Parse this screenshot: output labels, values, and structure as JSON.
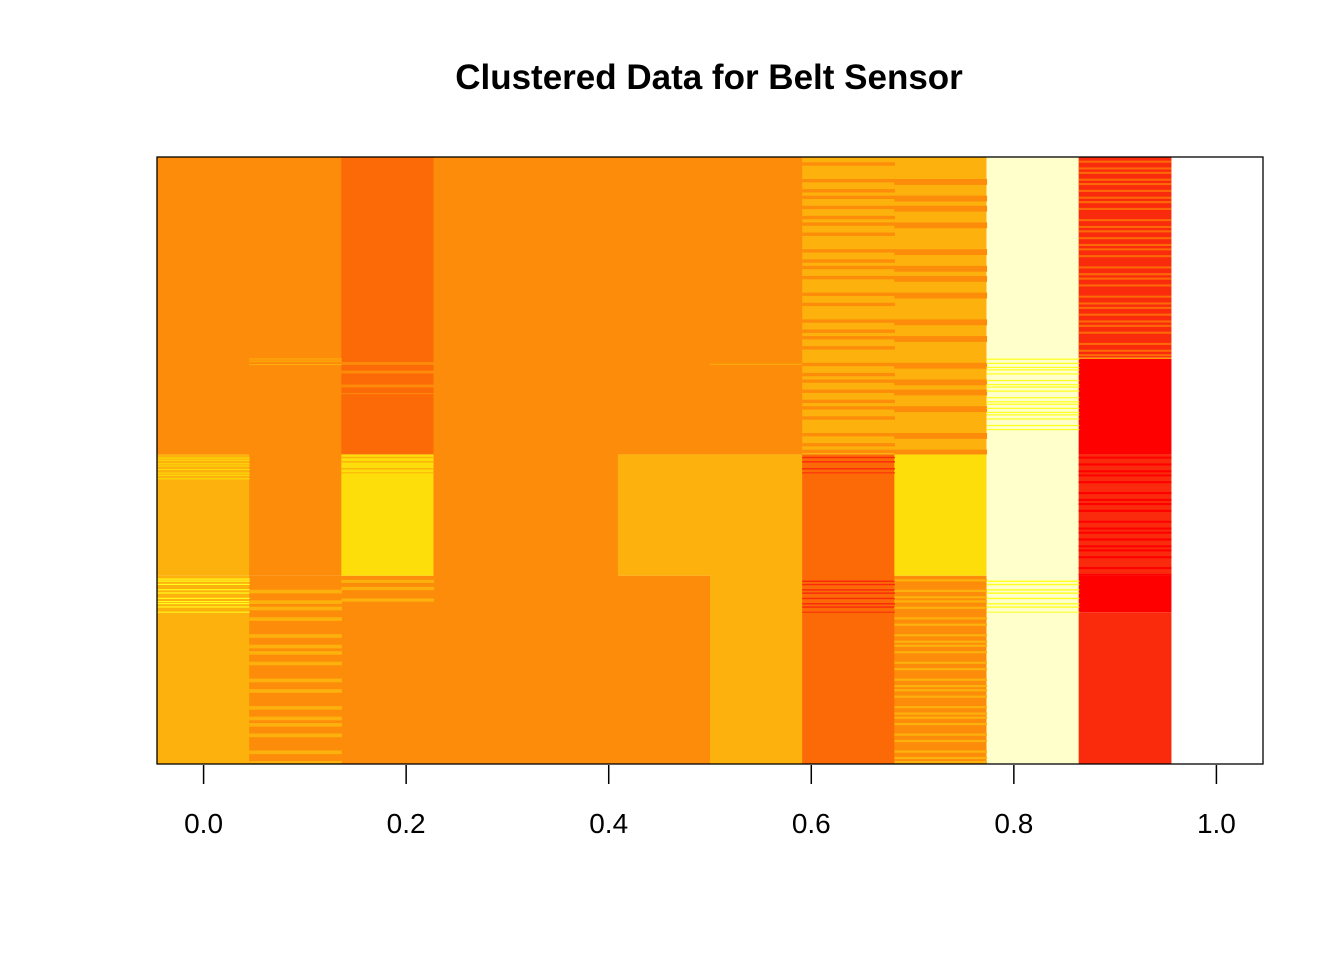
{
  "chart_data": {
    "type": "heatmap",
    "title": "Clustered Data for Belt Sensor",
    "xlabel": "",
    "ylabel": "",
    "x_ticks": [
      "0.0",
      "0.2",
      "0.4",
      "0.6",
      "0.8",
      "1.0"
    ],
    "x_tick_values": [
      0.0,
      0.2,
      0.4,
      0.6,
      0.8,
      1.0
    ],
    "xlim": [
      -0.046,
      1.046
    ],
    "colormap": "heat",
    "columns": 12,
    "palette": {
      "red": "#FF0000",
      "red_orange": "#FA2A0C",
      "dark_orange": "#FC6A08",
      "orange": "#FC8C0A",
      "amber": "#FCB10C",
      "yellow": "#FDDD0A",
      "bright_yellow": "#FFFF22",
      "pale_yellow": "#FFFFCC"
    },
    "blocks": [
      {
        "col": 0,
        "y0": 0.0,
        "y1": 0.49,
        "color": "orange"
      },
      {
        "col": 0,
        "y0": 0.49,
        "y1": 0.69,
        "color": "amber"
      },
      {
        "col": 0,
        "y0": 0.69,
        "y1": 0.75,
        "color": "amber"
      },
      {
        "col": 0,
        "y0": 0.75,
        "y1": 1.0,
        "color": "amber"
      },
      {
        "col": 1,
        "y0": 0.0,
        "y1": 0.69,
        "color": "orange"
      },
      {
        "col": 1,
        "y0": 0.69,
        "y1": 1.0,
        "color": "orange"
      },
      {
        "col": 2,
        "y0": 0.0,
        "y1": 0.49,
        "color": "dark_orange"
      },
      {
        "col": 2,
        "y0": 0.49,
        "y1": 0.69,
        "color": "yellow"
      },
      {
        "col": 2,
        "y0": 0.69,
        "y1": 1.0,
        "color": "orange"
      },
      {
        "col": 3,
        "y0": 0.0,
        "y1": 1.0,
        "color": "orange"
      },
      {
        "col": 4,
        "y0": 0.0,
        "y1": 1.0,
        "color": "orange"
      },
      {
        "col": 5,
        "y0": 0.0,
        "y1": 0.49,
        "color": "orange"
      },
      {
        "col": 5,
        "y0": 0.49,
        "y1": 0.69,
        "color": "amber"
      },
      {
        "col": 5,
        "y0": 0.69,
        "y1": 1.0,
        "color": "orange"
      },
      {
        "col": 6,
        "y0": 0.0,
        "y1": 0.49,
        "color": "orange"
      },
      {
        "col": 6,
        "y0": 0.49,
        "y1": 1.0,
        "color": "amber"
      },
      {
        "col": 7,
        "y0": 0.0,
        "y1": 0.49,
        "color": "amber"
      },
      {
        "col": 7,
        "y0": 0.49,
        "y1": 1.0,
        "color": "dark_orange"
      },
      {
        "col": 8,
        "y0": 0.0,
        "y1": 0.49,
        "color": "amber"
      },
      {
        "col": 8,
        "y0": 0.49,
        "y1": 0.69,
        "color": "yellow"
      },
      {
        "col": 8,
        "y0": 0.69,
        "y1": 1.0,
        "color": "orange"
      },
      {
        "col": 9,
        "y0": 0.0,
        "y1": 1.0,
        "color": "pale_yellow"
      },
      {
        "col": 10,
        "y0": 0.0,
        "y1": 0.33,
        "color": "red_orange"
      },
      {
        "col": 10,
        "y0": 0.33,
        "y1": 0.49,
        "color": "red"
      },
      {
        "col": 10,
        "y0": 0.49,
        "y1": 0.69,
        "color": "red_orange"
      },
      {
        "col": 10,
        "y0": 0.69,
        "y1": 0.75,
        "color": "red"
      },
      {
        "col": 10,
        "y0": 0.75,
        "y1": 1.0,
        "color": "red_orange"
      }
    ],
    "stripes": [
      {
        "col": 0,
        "y0": 0.49,
        "y1": 0.53,
        "color": "yellow",
        "n": 8
      },
      {
        "col": 0,
        "y0": 0.69,
        "y1": 0.75,
        "color": "bright_yellow",
        "n": 10
      },
      {
        "col": 1,
        "y0": 0.33,
        "y1": 0.345,
        "color": "amber",
        "n": 3
      },
      {
        "col": 1,
        "y0": 0.69,
        "y1": 1.0,
        "color": "amber",
        "n": 16
      },
      {
        "col": 2,
        "y0": 0.33,
        "y1": 0.39,
        "color": "orange",
        "n": 4
      },
      {
        "col": 2,
        "y0": 0.69,
        "y1": 0.74,
        "color": "amber",
        "n": 3
      },
      {
        "col": 2,
        "y0": 0.49,
        "y1": 0.52,
        "color": "amber",
        "n": 4
      },
      {
        "col": 6,
        "y0": 0.34,
        "y1": 0.345,
        "color": "amber",
        "n": 1
      },
      {
        "col": 7,
        "y0": 0.0,
        "y1": 0.49,
        "color": "orange",
        "n": 28
      },
      {
        "col": 7,
        "y0": 0.49,
        "y1": 0.52,
        "color": "red_orange",
        "n": 4
      },
      {
        "col": 7,
        "y0": 0.69,
        "y1": 0.75,
        "color": "red_orange",
        "n": 8
      },
      {
        "col": 8,
        "y0": 0.0,
        "y1": 0.49,
        "color": "orange",
        "n": 16
      },
      {
        "col": 8,
        "y0": 0.69,
        "y1": 1.0,
        "color": "amber",
        "n": 26
      },
      {
        "col": 9,
        "y0": 0.33,
        "y1": 0.45,
        "color": "bright_yellow",
        "n": 18
      },
      {
        "col": 9,
        "y0": 0.69,
        "y1": 0.75,
        "color": "bright_yellow",
        "n": 8
      },
      {
        "col": 10,
        "y0": 0.0,
        "y1": 0.33,
        "color": "dark_orange",
        "n": 30
      },
      {
        "col": 10,
        "y0": 0.49,
        "y1": 0.69,
        "color": "red",
        "n": 18
      },
      {
        "col": 10,
        "y0": 0.33,
        "y1": 0.335,
        "color": "yellow",
        "n": 1
      }
    ]
  }
}
